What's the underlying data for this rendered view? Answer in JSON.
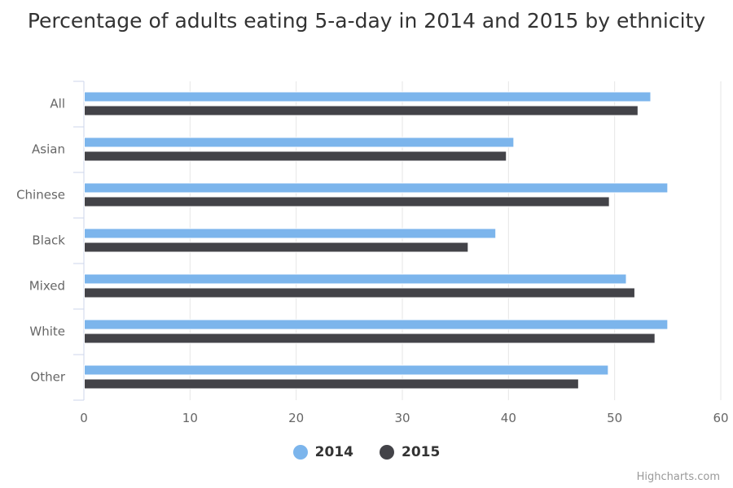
{
  "chart_data": {
    "type": "bar",
    "orientation": "horizontal",
    "title": "Percentage of adults eating 5-a-day in 2014 and 2015 by ethnicity",
    "categories": [
      "All",
      "Asian",
      "Chinese",
      "Black",
      "Mixed",
      "White",
      "Other"
    ],
    "series": [
      {
        "name": "2014",
        "color": "#7cb5ec",
        "values": [
          53.4,
          40.5,
          55.0,
          38.8,
          51.1,
          55.0,
          49.4
        ]
      },
      {
        "name": "2015",
        "color": "#434348",
        "values": [
          52.2,
          39.8,
          49.5,
          36.2,
          51.9,
          53.8,
          46.6
        ]
      }
    ],
    "xticks": [
      0,
      10,
      20,
      30,
      40,
      50,
      60
    ],
    "xlim": [
      0,
      60
    ],
    "grid": true,
    "legend": "bottom-center"
  },
  "credits": "Highcharts.com"
}
